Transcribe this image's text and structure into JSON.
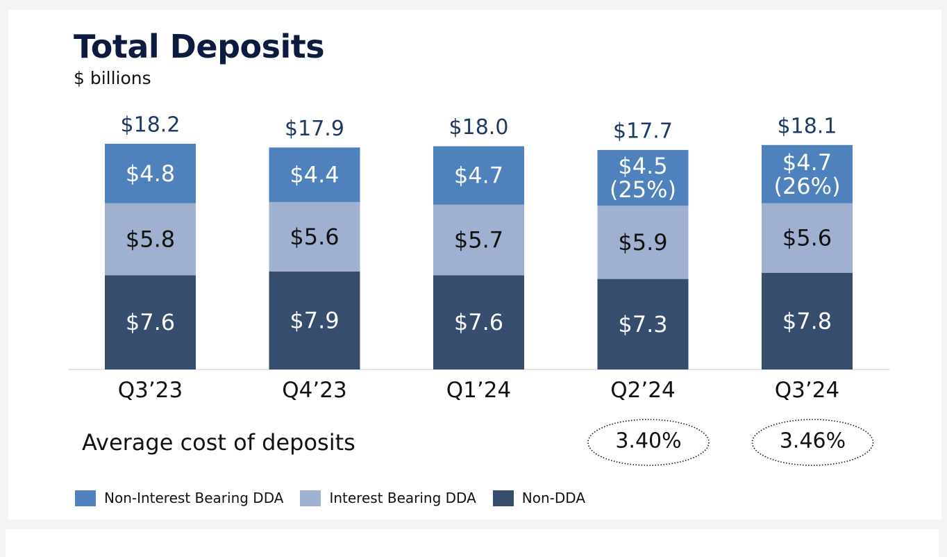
{
  "title": "Total Deposits",
  "subtitle": "$ billions",
  "cost_label": "Average cost of deposits",
  "colors": {
    "non_interest_bearing_dda": "#4f81bd",
    "interest_bearing_dda": "#9fb0d1",
    "non_dda": "#364d6e",
    "total_label": "#1f3864",
    "axis": "#cccccc"
  },
  "legend": [
    {
      "label": "Non-Interest Bearing DDA",
      "color": "#4f81bd"
    },
    {
      "label": "Interest Bearing DDA",
      "color": "#9fb0d1"
    },
    {
      "label": "Non-DDA",
      "color": "#364d6e"
    }
  ],
  "chart_data": {
    "type": "bar",
    "stacked": true,
    "categories": [
      "Q3’23",
      "Q4’23",
      "Q1’24",
      "Q2’24",
      "Q3’24"
    ],
    "series": [
      {
        "name": "Non-DDA",
        "values": [
          7.6,
          7.9,
          7.6,
          7.3,
          7.8
        ],
        "labels": [
          "$7.6",
          "$7.9",
          "$7.6",
          "$7.3",
          "$7.8"
        ]
      },
      {
        "name": "Interest Bearing DDA",
        "values": [
          5.8,
          5.6,
          5.7,
          5.9,
          5.6
        ],
        "labels": [
          "$5.8",
          "$5.6",
          "$5.7",
          "$5.9",
          "$5.6"
        ]
      },
      {
        "name": "Non-Interest Bearing DDA",
        "values": [
          4.8,
          4.4,
          4.7,
          4.5,
          4.7
        ],
        "labels": [
          "$4.8",
          "$4.4",
          "$4.7",
          "$4.5",
          "$4.7"
        ],
        "share_labels": [
          "",
          "",
          "",
          "(25%)",
          "(26%)"
        ]
      }
    ],
    "totals": [
      18.2,
      17.9,
      18.0,
      17.7,
      18.1
    ],
    "total_labels": [
      "$18.2",
      "$17.9",
      "$18.0",
      "$17.7",
      "$18.1"
    ],
    "average_cost_of_deposits": [
      "",
      "",
      "",
      "3.40%",
      "3.46%"
    ],
    "title": "Total Deposits",
    "ylabel": "$ billions",
    "ylim": [
      0,
      18.2
    ],
    "legend_position": "bottom-left",
    "grid": false
  }
}
